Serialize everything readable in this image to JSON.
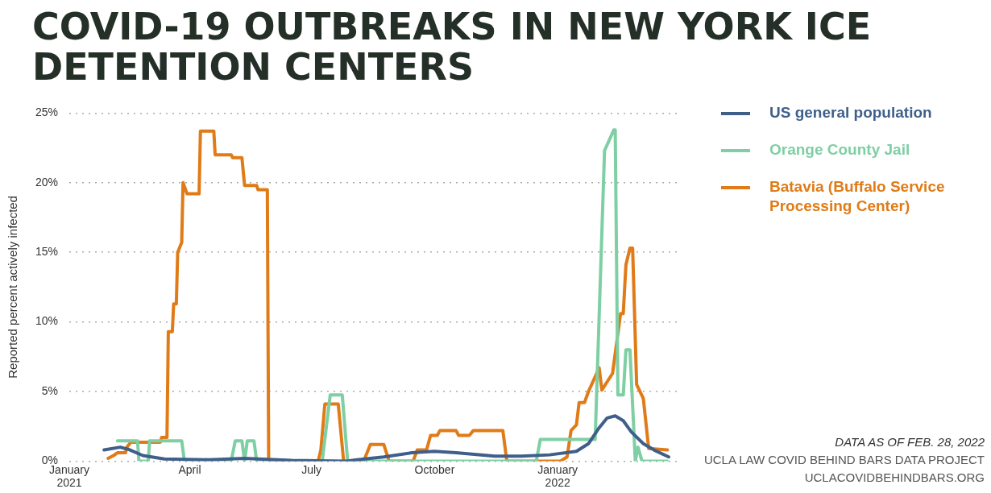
{
  "chart_data": {
    "type": "line",
    "title": "COVID-19 OUTBREAKS IN NEW YORK ICE DETENTION CENTERS",
    "ylabel": "Reported percent actively infected",
    "xlim": [
      "2021-01-01",
      "2022-03-31"
    ],
    "xticks": [
      {
        "value": "2021-01-01",
        "label": "January 2021"
      },
      {
        "value": "2021-04-01",
        "label": "April"
      },
      {
        "value": "2021-07-01",
        "label": "July"
      },
      {
        "value": "2021-10-01",
        "label": "October"
      },
      {
        "value": "2022-01-01",
        "label": "January 2022"
      }
    ],
    "ylim": [
      0,
      25
    ],
    "yticks": [
      {
        "value": 0,
        "label": "0%"
      },
      {
        "value": 5,
        "label": "5%"
      },
      {
        "value": 10,
        "label": "10%"
      },
      {
        "value": 15,
        "label": "15%"
      },
      {
        "value": 20,
        "label": "20%"
      },
      {
        "value": 25,
        "label": "25%"
      }
    ],
    "grid": "y",
    "legend": "right",
    "marker": "none",
    "line_style": "solid",
    "series": [
      {
        "name": "US general population",
        "color": "#3f5f8a",
        "x": [
          "2021-01-27",
          "2021-02-08",
          "2021-02-14",
          "2021-02-25",
          "2021-03-13",
          "2021-04-15",
          "2021-05-12",
          "2021-06-16",
          "2021-07-27",
          "2021-08-04",
          "2021-08-24",
          "2021-09-14",
          "2021-10-01",
          "2021-10-17",
          "2021-11-15",
          "2021-12-05",
          "2021-12-26",
          "2022-01-15",
          "2022-01-24",
          "2022-02-01",
          "2022-02-07",
          "2022-02-13",
          "2022-02-19",
          "2022-02-25",
          "2022-03-06",
          "2022-03-14",
          "2022-03-25"
        ],
        "values": [
          0.8,
          1.0,
          0.85,
          0.4,
          0.15,
          0.1,
          0.2,
          0.05,
          0,
          0.1,
          0.3,
          0.6,
          0.7,
          0.6,
          0.35,
          0.35,
          0.45,
          0.7,
          1.25,
          2.4,
          3.1,
          3.25,
          2.9,
          2.1,
          1.25,
          0.8,
          0.3
        ]
      },
      {
        "name": "Orange County Jail",
        "color": "#7ecfa4",
        "x": [
          "2021-02-06",
          "2021-02-21",
          "2021-02-22",
          "2021-03-01",
          "2021-03-02",
          "2021-03-26",
          "2021-03-28",
          "2021-05-02",
          "2021-05-05",
          "2021-05-10",
          "2021-05-12",
          "2021-05-14",
          "2021-05-19",
          "2021-05-21",
          "2021-07-09",
          "2021-07-15",
          "2021-07-24",
          "2021-07-28",
          "2021-12-16",
          "2021-12-19",
          "2022-01-29",
          "2022-02-05",
          "2022-02-12",
          "2022-02-13",
          "2022-02-15",
          "2022-02-19",
          "2022-02-21",
          "2022-02-24",
          "2022-02-28",
          "2022-03-02",
          "2022-03-05",
          "2022-03-24"
        ],
        "values": [
          1.45,
          1.45,
          0,
          0,
          1.45,
          1.45,
          0,
          0,
          1.45,
          1.45,
          0,
          1.45,
          1.45,
          0,
          0,
          4.75,
          4.75,
          0,
          0,
          1.55,
          1.55,
          22.3,
          23.8,
          23.8,
          4.75,
          4.75,
          8,
          8,
          0,
          1.0,
          0,
          0
        ]
      },
      {
        "name": "Batavia (Buffalo Service Processing Center)",
        "color": "#e07b17",
        "x": [
          "2021-01-30",
          "2021-02-03",
          "2021-02-06",
          "2021-02-12",
          "2021-02-13",
          "2021-02-16",
          "2021-03-10",
          "2021-03-11",
          "2021-03-15",
          "2021-03-16",
          "2021-03-19",
          "2021-03-20",
          "2021-03-22",
          "2021-03-23",
          "2021-03-26",
          "2021-03-27",
          "2021-03-30",
          "2021-04-08",
          "2021-04-09",
          "2021-04-19",
          "2021-04-20",
          "2021-05-02",
          "2021-05-03",
          "2021-05-10",
          "2021-05-12",
          "2021-05-21",
          "2021-05-22",
          "2021-05-29",
          "2021-05-30",
          "2021-07-06",
          "2021-07-08",
          "2021-07-11",
          "2021-07-21",
          "2021-07-25",
          "2021-08-09",
          "2021-08-14",
          "2021-08-24",
          "2021-08-28",
          "2021-09-15",
          "2021-09-18",
          "2021-09-25",
          "2021-09-28",
          "2021-10-03",
          "2021-10-05",
          "2021-10-17",
          "2021-10-19",
          "2021-10-27",
          "2021-10-30",
          "2021-11-21",
          "2021-11-24",
          "2022-01-03",
          "2022-01-08",
          "2022-01-11",
          "2022-01-15",
          "2022-01-17",
          "2022-01-21",
          "2022-01-24",
          "2022-02-01",
          "2022-02-03",
          "2022-02-11",
          "2022-02-17",
          "2022-02-19",
          "2022-02-21",
          "2022-02-24",
          "2022-02-26",
          "2022-03-01",
          "2022-03-06",
          "2022-03-10",
          "2022-03-24"
        ],
        "values": [
          0.2,
          0.4,
          0.6,
          0.6,
          1.0,
          1.35,
          1.35,
          1.7,
          1.7,
          9.3,
          9.3,
          11.3,
          11.3,
          15,
          15.7,
          20,
          19.2,
          19.2,
          23.7,
          23.7,
          22,
          22,
          21.8,
          21.8,
          19.8,
          19.8,
          19.5,
          19.5,
          0,
          0,
          0.8,
          4.1,
          4.1,
          0,
          0,
          1.2,
          1.2,
          0,
          0,
          0.8,
          0.8,
          1.85,
          1.85,
          2.2,
          2.2,
          1.85,
          1.85,
          2.2,
          2.2,
          0,
          0,
          0.3,
          2.2,
          2.6,
          4.2,
          4.2,
          5,
          6.7,
          5.1,
          6.3,
          10.6,
          10.6,
          14.1,
          15.3,
          15.3,
          5.5,
          4.5,
          0.9,
          0.8
        ]
      }
    ],
    "annotations": [
      "DATA AS OF FEB. 28, 2022",
      "UCLA LAW COVID BEHIND BARS DATA PROJECT",
      "UCLACOVIDBEHINDBARS.ORG"
    ]
  }
}
